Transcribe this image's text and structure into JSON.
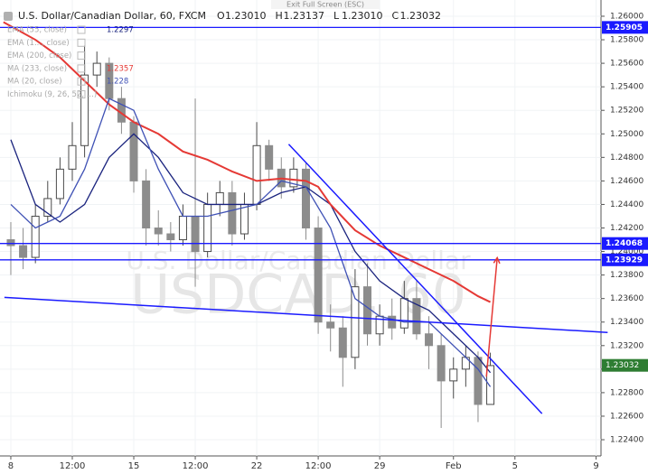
{
  "chart_data": {
    "type": "candlestick",
    "title": "U.S. Dollar/Canadian Dollar, 60, FXCM",
    "exit_text": "Exit Full Screen (ESC)",
    "watermark": [
      "USDCAD, 60",
      "U.S. Dollar/Canadian Dollar"
    ],
    "ohlc": [
      {
        "prefix": "O",
        "value": 1.2301,
        "label": "1.23010"
      },
      {
        "prefix": "H",
        "value": 1.23137,
        "label": "1.23137"
      },
      {
        "prefix": "L",
        "value": 1.2301,
        "label": "1.23010"
      },
      {
        "prefix": "C",
        "value": 1.23032,
        "label": "1.23032"
      }
    ],
    "up_color": "#4a4a4a",
    "down_color": "#8c8c8c",
    "x": [
      0,
      0.5,
      1,
      1.5,
      2,
      2.5,
      3,
      3.5,
      4,
      4.5,
      5,
      5.5,
      6,
      6.5,
      7,
      7.5,
      8,
      8.5,
      9,
      9.5,
      10,
      10.5,
      11,
      11.5,
      12,
      12.5,
      13,
      13.5,
      14,
      14.5,
      15,
      15.5,
      16,
      16.5,
      17,
      17.5,
      18,
      18.5,
      19,
      19.5
    ],
    "open": [
      1.241,
      1.2405,
      1.2395,
      1.243,
      1.2445,
      1.247,
      1.249,
      1.255,
      1.256,
      1.253,
      1.251,
      1.246,
      1.242,
      1.2415,
      1.241,
      1.243,
      1.24,
      1.244,
      1.245,
      1.2415,
      1.244,
      1.249,
      1.247,
      1.2455,
      1.247,
      1.242,
      1.234,
      1.2335,
      1.231,
      1.237,
      1.233,
      1.2345,
      1.2335,
      1.236,
      1.233,
      1.232,
      1.229,
      1.23,
      1.231,
      1.227
    ],
    "high": [
      1.2425,
      1.242,
      1.244,
      1.246,
      1.248,
      1.251,
      1.2575,
      1.257,
      1.2565,
      1.254,
      1.2515,
      1.247,
      1.2435,
      1.2425,
      1.244,
      1.253,
      1.245,
      1.246,
      1.246,
      1.245,
      1.251,
      1.2495,
      1.248,
      1.248,
      1.2475,
      1.243,
      1.2355,
      1.2345,
      1.2385,
      1.239,
      1.2355,
      1.236,
      1.2375,
      1.2375,
      1.2345,
      1.233,
      1.231,
      1.232,
      1.2315,
      1.2314
    ],
    "low": [
      1.238,
      1.2385,
      1.239,
      1.2425,
      1.244,
      1.246,
      1.248,
      1.254,
      1.252,
      1.25,
      1.245,
      1.2405,
      1.2405,
      1.24,
      1.2405,
      1.237,
      1.2395,
      1.243,
      1.2405,
      1.241,
      1.2435,
      1.246,
      1.2445,
      1.245,
      1.241,
      1.233,
      1.2315,
      1.2285,
      1.23,
      1.232,
      1.232,
      1.2325,
      1.233,
      1.2325,
      1.23,
      1.225,
      1.2275,
      1.2285,
      1.2255,
      1.227
    ],
    "close": [
      1.2405,
      1.2395,
      1.243,
      1.2445,
      1.247,
      1.249,
      1.255,
      1.256,
      1.253,
      1.251,
      1.246,
      1.242,
      1.2415,
      1.241,
      1.243,
      1.24,
      1.244,
      1.245,
      1.2415,
      1.244,
      1.249,
      1.247,
      1.2455,
      1.247,
      1.242,
      1.234,
      1.2335,
      1.231,
      1.237,
      1.233,
      1.2345,
      1.2335,
      1.236,
      1.233,
      1.232,
      1.229,
      1.23,
      1.231,
      1.227,
      1.2303
    ],
    "indicators": [
      {
        "name": "EMA (55, close)",
        "value": 1.2297,
        "color": "#1a237e",
        "x": [
          0,
          1,
          2,
          3,
          4,
          5,
          6,
          7,
          8,
          9,
          10,
          11,
          12,
          13,
          14,
          15,
          16,
          17,
          18,
          19,
          19.5
        ],
        "values": [
          1.2495,
          1.244,
          1.2425,
          1.244,
          1.248,
          1.25,
          1.248,
          1.245,
          1.244,
          1.244,
          1.244,
          1.245,
          1.2455,
          1.244,
          1.24,
          1.2375,
          1.236,
          1.235,
          1.233,
          1.231,
          1.2297
        ]
      },
      {
        "name": "EMA (1..., close)",
        "color": "#9fa8da"
      },
      {
        "name": "EMA (200, close)",
        "color": "#9fa8da"
      },
      {
        "name": "MA (233, close)",
        "value": 1.2357,
        "color": "#e53935",
        "x": [
          -0.3,
          1,
          2,
          3,
          4,
          5,
          6,
          7,
          8,
          9,
          10,
          11,
          12,
          12.5,
          13,
          14,
          15,
          16,
          17,
          18,
          19,
          19.5
        ],
        "values": [
          1.2595,
          1.258,
          1.2565,
          1.2545,
          1.2525,
          1.251,
          1.25,
          1.2485,
          1.2478,
          1.2468,
          1.246,
          1.2462,
          1.246,
          1.2455,
          1.244,
          1.2418,
          1.2405,
          1.2395,
          1.2385,
          1.2375,
          1.2362,
          1.2357
        ]
      },
      {
        "name": "MA (20, close)",
        "value": 1.228,
        "color": "#3f51b5",
        "x": [
          0,
          1,
          2,
          3,
          4,
          5,
          6,
          7,
          8,
          9,
          10,
          11,
          12,
          13,
          14,
          15,
          16,
          17,
          18,
          19,
          19.5
        ],
        "values": [
          1.244,
          1.242,
          1.243,
          1.247,
          1.253,
          1.252,
          1.247,
          1.243,
          1.243,
          1.2435,
          1.244,
          1.246,
          1.2455,
          1.242,
          1.236,
          1.2345,
          1.234,
          1.234,
          1.232,
          1.23,
          1.2285
        ]
      },
      {
        "name": "Ichimoku (9, 26, 52, ...)",
        "color": "#9fa8da"
      }
    ],
    "hlines": [
      {
        "value": 1.25905,
        "label": "1.25905"
      },
      {
        "value": 1.24068,
        "label": "1.24068"
      },
      {
        "value": 1.23929,
        "label": "1.23929"
      }
    ],
    "last_price": {
      "value": 1.23032,
      "label": "1.23032",
      "color": "#2e7d32"
    },
    "trendlines": [
      {
        "x": [
          11.3,
          21.6
        ],
        "y": [
          1.24912,
          1.22622
        ],
        "color": "#1a1aff"
      },
      {
        "x": [
          -0.26,
          24.27
        ],
        "y": [
          1.2361,
          1.23312
        ],
        "color": "#1a1aff"
      }
    ],
    "arrow": {
      "x": [
        19.34,
        19.78
      ],
      "y": [
        1.22936,
        1.23947
      ],
      "color": "#e53935"
    },
    "xlim": [
      -0.44,
      24.0
    ],
    "ylim": [
      1.22262,
      1.26138
    ],
    "xticks": [
      {
        "value": 0,
        "label": "8"
      },
      {
        "value": 2.5,
        "label": "12:00"
      },
      {
        "value": 5,
        "label": "15"
      },
      {
        "value": 7.5,
        "label": "12:00"
      },
      {
        "value": 10,
        "label": "22"
      },
      {
        "value": 12.5,
        "label": "12:00"
      },
      {
        "value": 15,
        "label": "29"
      },
      {
        "value": 18,
        "label": "Feb"
      },
      {
        "value": 20.5,
        "label": "5"
      },
      {
        "value": 23.8,
        "label": "9"
      }
    ],
    "yticks": [
      {
        "value": 1.26,
        "label": "1.26000"
      },
      {
        "value": 1.258,
        "label": "1.25800"
      },
      {
        "value": 1.256,
        "label": "1.25600"
      },
      {
        "value": 1.254,
        "label": "1.25400"
      },
      {
        "value": 1.252,
        "label": "1.25200"
      },
      {
        "value": 1.25,
        "label": "1.25000"
      },
      {
        "value": 1.248,
        "label": "1.24800"
      },
      {
        "value": 1.246,
        "label": "1.24600"
      },
      {
        "value": 1.244,
        "label": "1.24400"
      },
      {
        "value": 1.242,
        "label": "1.24200"
      },
      {
        "value": 1.24,
        "label": "1.24000"
      },
      {
        "value": 1.238,
        "label": "1.23800"
      },
      {
        "value": 1.236,
        "label": "1.23600"
      },
      {
        "value": 1.234,
        "label": "1.23400"
      },
      {
        "value": 1.232,
        "label": "1.23200"
      },
      {
        "value": 1.23,
        "label": "1.23000"
      },
      {
        "value": 1.228,
        "label": "1.22800"
      },
      {
        "value": 1.226,
        "label": "1.22600"
      },
      {
        "value": 1.224,
        "label": "1.22400"
      }
    ],
    "grid": true
  }
}
